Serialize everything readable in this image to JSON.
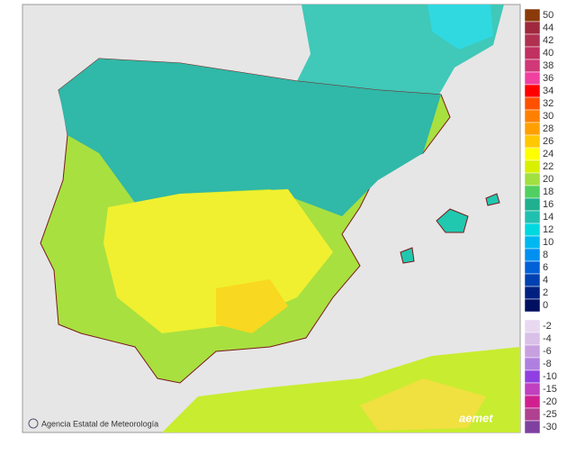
{
  "legend": {
    "upper": [
      {
        "label": "50",
        "color": "#8b3a0a"
      },
      {
        "label": "44",
        "color": "#a0283c"
      },
      {
        "label": "42",
        "color": "#b03050"
      },
      {
        "label": "40",
        "color": "#c03060"
      },
      {
        "label": "38",
        "color": "#d03878"
      },
      {
        "label": "36",
        "color": "#f040a0"
      },
      {
        "label": "34",
        "color": "#ff0000"
      },
      {
        "label": "32",
        "color": "#ff5000"
      },
      {
        "label": "30",
        "color": "#ff8000"
      },
      {
        "label": "28",
        "color": "#ffa000"
      },
      {
        "label": "26",
        "color": "#ffc800"
      },
      {
        "label": "24",
        "color": "#ffff00"
      },
      {
        "label": "22",
        "color": "#d8f000"
      },
      {
        "label": "20",
        "color": "#a0e040"
      },
      {
        "label": "18",
        "color": "#50d060"
      },
      {
        "label": "16",
        "color": "#20b090"
      },
      {
        "label": "14",
        "color": "#20c0b0"
      },
      {
        "label": "12",
        "color": "#00d8e0"
      },
      {
        "label": "10",
        "color": "#00b8f0"
      },
      {
        "label": "8",
        "color": "#0090f0"
      },
      {
        "label": "6",
        "color": "#0060d8"
      },
      {
        "label": "4",
        "color": "#0040b0"
      },
      {
        "label": "2",
        "color": "#002080"
      },
      {
        "label": "0",
        "color": "#001060"
      }
    ],
    "lower": [
      {
        "label": "-2",
        "color": "#e8d8f0"
      },
      {
        "label": "-4",
        "color": "#d8c0e8"
      },
      {
        "label": "-6",
        "color": "#c8a0e0"
      },
      {
        "label": "-8",
        "color": "#b080e0"
      },
      {
        "label": "-10",
        "color": "#9040e0"
      },
      {
        "label": "-15",
        "color": "#c040c0"
      },
      {
        "label": "-20",
        "color": "#d02090"
      },
      {
        "label": "-25",
        "color": "#b04090"
      },
      {
        "label": "-30",
        "color": "#8040a0"
      }
    ]
  },
  "credit": "Agencia Estatal de Meteorología",
  "logo": "aemet"
}
